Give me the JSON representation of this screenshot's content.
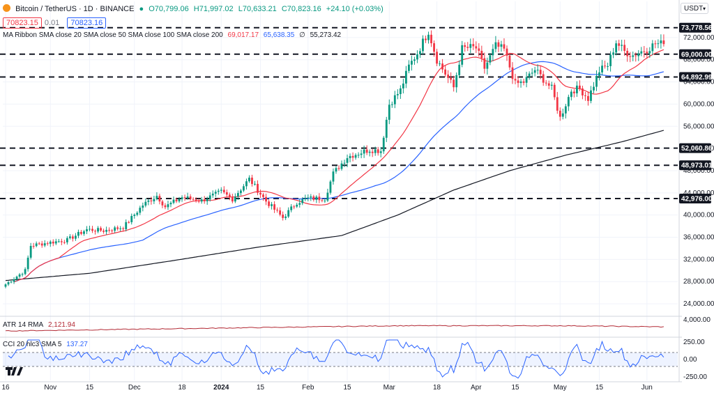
{
  "header": {
    "symbol": "Bitcoin / TetherUS · 1D · BINANCE",
    "o": "O70,799.06",
    "h": "H71,997.02",
    "l": "L70,633.21",
    "c": "C70,823.16",
    "chg": "+24.10 (+0.03%)",
    "bid": "70823.15",
    "spread": "0.01",
    "ask": "70823.16",
    "ma_title": "MA Ribbon SMA close 20 SMA close 50 SMA close 100 SMA close 200",
    "ma_20": "69,017.17",
    "ma_50": "65,638.35",
    "ma_100": "∅",
    "ma_200": "55,273.42",
    "currency": "USDT"
  },
  "atr": {
    "title": "ATR 14 RMA",
    "value": "2,121.94"
  },
  "cci": {
    "title": "CCI 20 hlc3 SMA 5",
    "value": "137.27"
  },
  "colors": {
    "up": "#089981",
    "down": "#f23645",
    "ma20": "#f23645",
    "ma50": "#2962ff",
    "ma200": "#131722",
    "atr": "#b22833",
    "cci": "#2962ff"
  },
  "chart_data": {
    "type": "candlestick",
    "y_ticks": [
      "72,000.00",
      "68,000.00",
      "64,000.00",
      "60,000.00",
      "56,000.00",
      "52,000.00",
      "48,000.00",
      "44,000.00",
      "40,000.00",
      "36,000.00",
      "32,000.00",
      "28,000.00",
      "24,000.00"
    ],
    "ylim": [
      22000,
      75000
    ],
    "hlines": [
      {
        "value": 73778.56,
        "label": "73,778.56"
      },
      {
        "value": 69000.0,
        "label": "69,000.00"
      },
      {
        "value": 64892.99,
        "label": "64,892.99"
      },
      {
        "value": 52060.86,
        "label": "52,060.86"
      },
      {
        "value": 48973.01,
        "label": "48,973.01"
      },
      {
        "value": 42976.0,
        "label": "42,976.00"
      }
    ],
    "x_ticks": [
      {
        "label": "16",
        "day": 0
      },
      {
        "label": "Nov",
        "day": 16
      },
      {
        "label": "15",
        "day": 30
      },
      {
        "label": "Dec",
        "day": 46
      },
      {
        "label": "18",
        "day": 63
      },
      {
        "label": "2024",
        "day": 77
      },
      {
        "label": "15",
        "day": 91
      },
      {
        "label": "Feb",
        "day": 108
      },
      {
        "label": "15",
        "day": 122
      },
      {
        "label": "Mar",
        "day": 137
      },
      {
        "label": "18",
        "day": 154
      },
      {
        "label": "Apr",
        "day": 168
      },
      {
        "label": "15",
        "day": 182
      },
      {
        "label": "May",
        "day": 198
      },
      {
        "label": "15",
        "day": 212
      },
      {
        "label": "Jun",
        "day": 229
      }
    ],
    "close_anchors": [
      [
        0,
        27500
      ],
      [
        7,
        30000
      ],
      [
        9,
        34500
      ],
      [
        15,
        35000
      ],
      [
        22,
        35500
      ],
      [
        29,
        37400
      ],
      [
        35,
        37200
      ],
      [
        42,
        37800
      ],
      [
        45,
        39500
      ],
      [
        49,
        41800
      ],
      [
        54,
        43500
      ],
      [
        57,
        41500
      ],
      [
        63,
        43200
      ],
      [
        70,
        42600
      ],
      [
        77,
        44200
      ],
      [
        81,
        42900
      ],
      [
        87,
        46500
      ],
      [
        93,
        42500
      ],
      [
        99,
        39500
      ],
      [
        104,
        42300
      ],
      [
        108,
        43000
      ],
      [
        114,
        43000
      ],
      [
        117,
        47500
      ],
      [
        122,
        50500
      ],
      [
        130,
        51800
      ],
      [
        134,
        51600
      ],
      [
        137,
        60000
      ],
      [
        141,
        62500
      ],
      [
        144,
        66800
      ],
      [
        147,
        69200
      ],
      [
        151,
        73200
      ],
      [
        154,
        68000
      ],
      [
        157,
        65500
      ],
      [
        160,
        63000
      ],
      [
        163,
        70000
      ],
      [
        166,
        70200
      ],
      [
        168,
        70100
      ],
      [
        171,
        66500
      ],
      [
        175,
        70500
      ],
      [
        178,
        69800
      ],
      [
        182,
        63600
      ],
      [
        185,
        64000
      ],
      [
        189,
        66200
      ],
      [
        192,
        64500
      ],
      [
        195,
        62800
      ],
      [
        198,
        57500
      ],
      [
        202,
        62500
      ],
      [
        205,
        62800
      ],
      [
        208,
        61000
      ],
      [
        212,
        66000
      ],
      [
        215,
        67000
      ],
      [
        218,
        71200
      ],
      [
        221,
        69500
      ],
      [
        224,
        68800
      ],
      [
        227,
        69500
      ],
      [
        229,
        69900
      ],
      [
        232,
        70900
      ],
      [
        235,
        70823
      ]
    ],
    "ma200_anchors": [
      [
        0,
        28200
      ],
      [
        30,
        29500
      ],
      [
        60,
        31800
      ],
      [
        90,
        34200
      ],
      [
        120,
        36300
      ],
      [
        140,
        40000
      ],
      [
        160,
        44500
      ],
      [
        180,
        48000
      ],
      [
        200,
        50800
      ],
      [
        220,
        53200
      ],
      [
        235,
        55270
      ]
    ],
    "atr": {
      "ylim": [
        0,
        4500
      ],
      "tick": "4,000.00"
    },
    "cci": {
      "ylim": [
        -300,
        300
      ],
      "ticks": [
        "250.00",
        "0.00",
        "-250.00"
      ],
      "band": [
        -100,
        100
      ]
    }
  }
}
